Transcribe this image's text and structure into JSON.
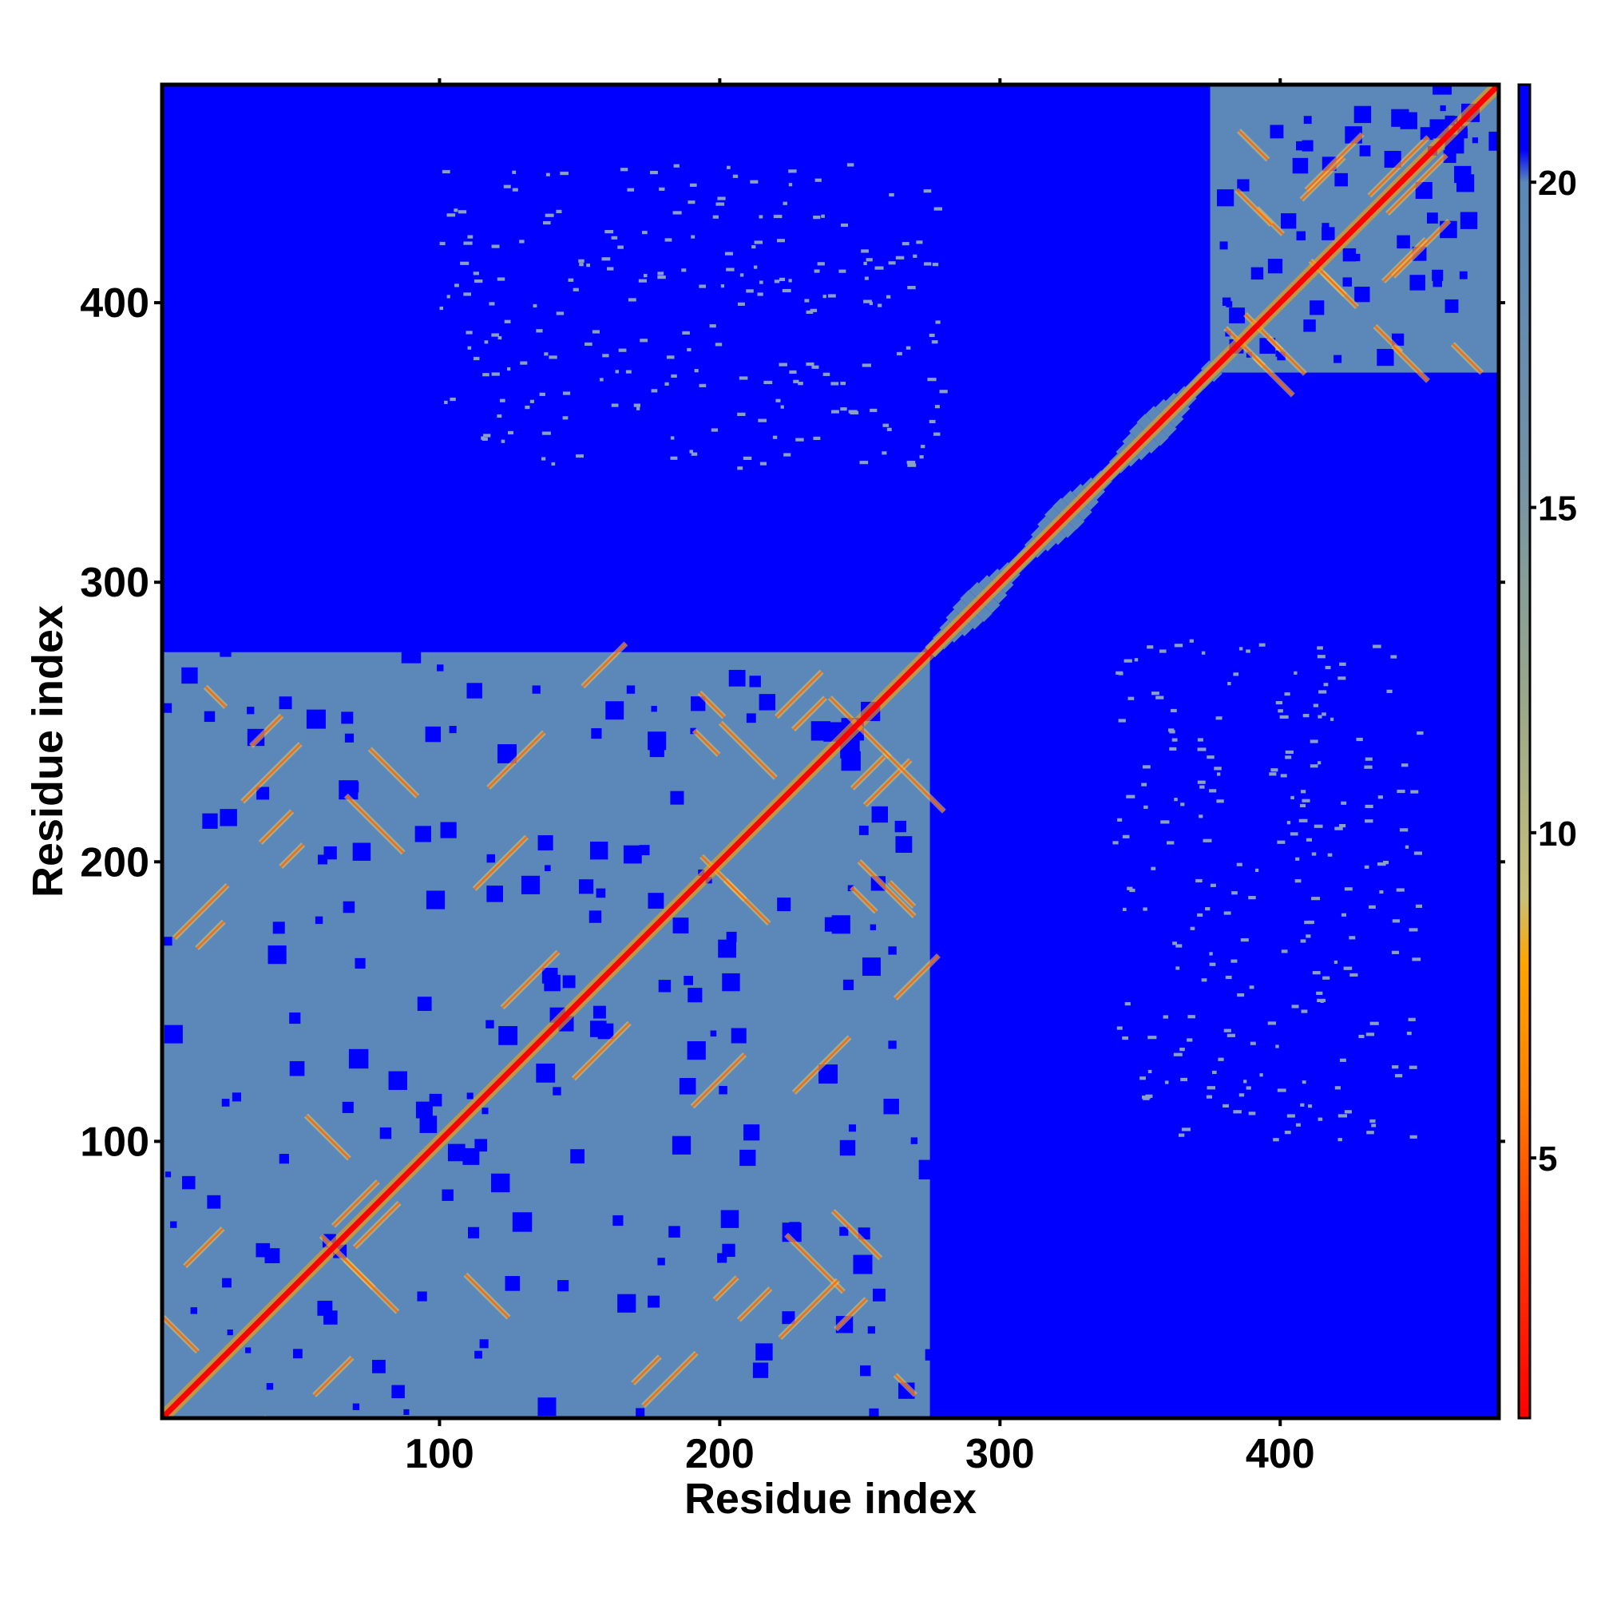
{
  "chart_data": {
    "type": "heatmap",
    "title": "",
    "xlabel": "Residue index",
    "ylabel": "Residue index",
    "xlim": [
      1,
      478
    ],
    "ylim": [
      1,
      478
    ],
    "xticks": [
      100,
      200,
      300,
      400
    ],
    "yticks": [
      100,
      200,
      300,
      400
    ],
    "colorbar": {
      "range": [
        1,
        21.5
      ],
      "ticks": [
        5,
        10,
        15,
        20
      ],
      "stops": [
        {
          "value": 1,
          "color": "#ff0000"
        },
        {
          "value": 4,
          "color": "#ff4000"
        },
        {
          "value": 6,
          "color": "#ff8000"
        },
        {
          "value": 8,
          "color": "#ffa500"
        },
        {
          "value": 9,
          "color": "#c8c078"
        },
        {
          "value": 12,
          "color": "#9aa88a"
        },
        {
          "value": 16,
          "color": "#7090a8"
        },
        {
          "value": 20,
          "color": "#5a88b8"
        },
        {
          "value": 20.5,
          "color": "#0000ff"
        }
      ]
    },
    "background_color": "#0000ff",
    "domain_fill_color": "#5b88b8",
    "domains": [
      {
        "start": 1,
        "end": 275
      },
      {
        "start": 375,
        "end": 478
      }
    ],
    "linker": {
      "start": 275,
      "end": 375
    },
    "diagonal_color": "#ff0000"
  }
}
